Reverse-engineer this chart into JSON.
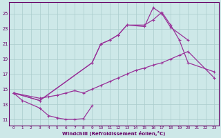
{
  "bg_color": "#cde8e8",
  "grid_color": "#aacccc",
  "line_color": "#993399",
  "marker_color": "#993399",
  "xlabel": "Windchill (Refroidissement éolien,°C)",
  "ylabel_ticks": [
    11,
    13,
    15,
    17,
    19,
    21,
    23,
    25
  ],
  "xticks": [
    0,
    1,
    2,
    3,
    4,
    5,
    6,
    7,
    8,
    9,
    10,
    11,
    12,
    13,
    14,
    15,
    16,
    17,
    18,
    19,
    20,
    21,
    22,
    23
  ],
  "xlim": [
    -0.5,
    23.5
  ],
  "ylim": [
    10.2,
    26.5
  ],
  "line1_x": [
    0,
    1,
    3,
    4,
    5,
    6,
    7,
    8,
    9
  ],
  "line1_y": [
    14.5,
    13.5,
    12.5,
    11.5,
    11.2,
    11.0,
    11.0,
    11.1,
    12.8
  ],
  "line2_x": [
    0,
    3,
    4,
    5,
    6,
    7,
    8,
    9,
    10,
    11,
    12,
    13,
    14,
    15,
    16,
    17,
    18,
    19,
    20,
    23
  ],
  "line2_y": [
    14.5,
    13.8,
    14.0,
    14.2,
    14.5,
    14.8,
    14.5,
    15.0,
    15.5,
    16.0,
    16.5,
    17.0,
    17.5,
    17.8,
    18.2,
    18.5,
    19.0,
    19.5,
    20.0,
    16.5
  ],
  "line3_x": [
    0,
    3,
    9,
    10,
    11,
    12,
    13,
    15,
    16,
    17,
    18,
    19,
    20,
    23
  ],
  "line3_y": [
    14.5,
    13.5,
    18.5,
    21.0,
    21.5,
    22.2,
    23.5,
    23.5,
    24.2,
    25.2,
    23.5,
    21.5,
    18.5,
    17.3
  ],
  "line4_x": [
    0,
    3,
    9,
    10,
    11,
    12,
    13,
    15,
    16,
    17,
    18,
    20
  ],
  "line4_y": [
    14.5,
    13.5,
    18.5,
    21.0,
    21.5,
    22.2,
    23.5,
    23.3,
    25.8,
    25.0,
    23.2,
    21.5
  ]
}
